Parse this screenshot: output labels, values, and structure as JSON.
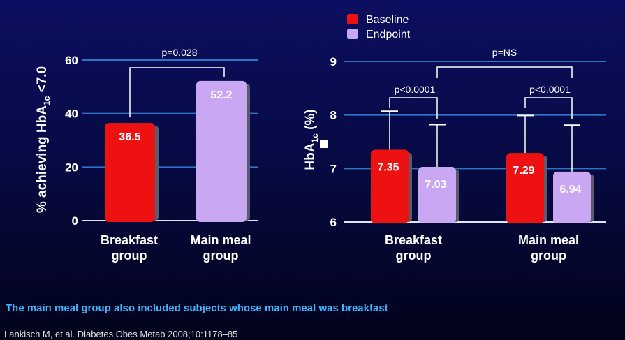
{
  "chart_data": [
    {
      "type": "bar",
      "ylabel": "% achieving HbA1c <7.0",
      "ylabel_parts": [
        "% achieving HbA",
        "1c",
        " <7.0"
      ],
      "ylim": [
        0,
        60
      ],
      "yticks": [
        0,
        20,
        40,
        60
      ],
      "yticklabels": [
        "0",
        "20",
        "40",
        "60"
      ],
      "categories": [
        [
          "Breakfast",
          "group"
        ],
        [
          "Main meal",
          "group"
        ]
      ],
      "bars": [
        {
          "group": "Breakfast group",
          "series": "Baseline",
          "value": 36.5,
          "label": "36.5"
        },
        {
          "group": "Main meal group",
          "series": "Endpoint",
          "value": 52.2,
          "label": "52.2"
        }
      ],
      "annotations": [
        {
          "text": "p=0.028",
          "between": [
            0,
            1
          ]
        }
      ]
    },
    {
      "type": "bar",
      "ylabel": "HbA1c (%)",
      "ylabel_parts": [
        "HbA",
        "1c",
        " (%)"
      ],
      "ylim": [
        6,
        9
      ],
      "yticks": [
        6,
        7,
        8,
        9
      ],
      "yticklabels": [
        "6",
        "7",
        "8",
        "9"
      ],
      "categories": [
        [
          "Breakfast",
          "group"
        ],
        [
          "Main meal",
          "group"
        ]
      ],
      "legend": [
        {
          "name": "Baseline",
          "color": "#ee1111"
        },
        {
          "name": "Endpoint",
          "color": "#c9a7f2"
        }
      ],
      "series": [
        {
          "name": "Baseline",
          "values": [
            7.35,
            7.29
          ],
          "labels": [
            "7.35",
            "7.29"
          ],
          "error_upper": [
            8.07,
            7.99
          ]
        },
        {
          "name": "Endpoint",
          "values": [
            7.03,
            6.94
          ],
          "labels": [
            "7.03",
            "6.94"
          ],
          "error_upper": [
            7.82,
            7.81
          ]
        }
      ],
      "annotations": [
        {
          "text": "p<0.0001",
          "group": 0
        },
        {
          "text": "p<0.0001",
          "group": 1
        },
        {
          "text": "p=NS",
          "between_endpoints": true
        }
      ]
    }
  ],
  "colors": {
    "baseline": "#ee1111",
    "endpoint": "#c9a7f2",
    "gridline": "#2f73c8",
    "note": "#3fb3ff"
  },
  "footnote": "The main meal group also included subjects whose main meal was breakfast",
  "citation": "Lankisch M, et al. Diabetes Obes Metab 2008;10:1178–85"
}
